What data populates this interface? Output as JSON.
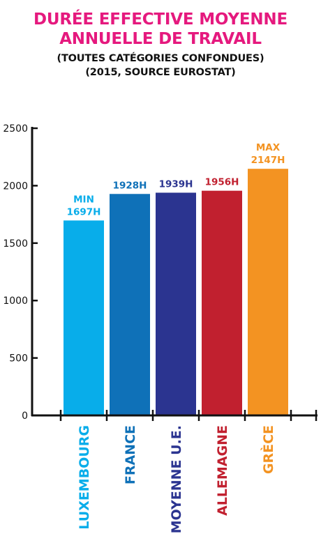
{
  "title_lines": [
    "Durée effective moyenne",
    "annuelle de travail"
  ],
  "subtitle_lines": [
    "(toutes catégories confondues)",
    "(2015, source Eurostat)"
  ],
  "colors": {
    "title": "#e5197e",
    "axis": "#111111"
  },
  "chart_data": {
    "type": "bar",
    "title": "Durée effective moyenne annuelle de travail",
    "subtitle": "(toutes catégories confondues) (2015, source Eurostat)",
    "categories": [
      "LUXEMBOURG",
      "FRANCE",
      "MOYENNE U.E.",
      "ALLEMAGNE",
      "GRÈCE"
    ],
    "values": [
      1697,
      1928,
      1939,
      1956,
      2147
    ],
    "labels": [
      "MIN\n1697H",
      "1928H",
      "1939H",
      "1956H",
      "MAX\n2147H"
    ],
    "colors": [
      "#08adea",
      "#0f71b8",
      "#2b3490",
      "#c1202f",
      "#f39322"
    ],
    "yticks": [
      0,
      500,
      1000,
      1500,
      2000,
      2500
    ],
    "ylim": [
      0,
      2500
    ],
    "xlabel": "",
    "ylabel": "",
    "grid": false,
    "legend": "none"
  }
}
